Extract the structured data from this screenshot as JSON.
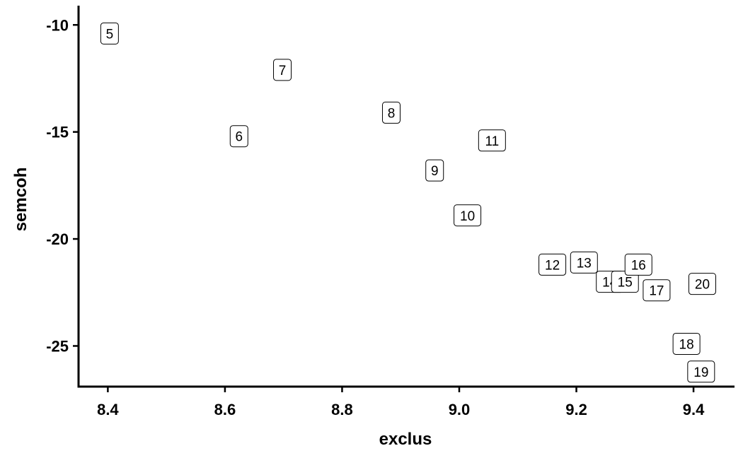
{
  "chart_data": {
    "type": "scatter",
    "title": "",
    "xlabel": "exclus",
    "ylabel": "semcoh",
    "xlim": [
      8.35,
      9.47
    ],
    "ylim": [
      -26.9,
      -9.1
    ],
    "xticks": [
      8.4,
      8.6,
      8.8,
      9.0,
      9.2,
      9.4
    ],
    "xtick_labels": [
      "8.4",
      "8.6",
      "8.8",
      "9.0",
      "9.2",
      "9.4"
    ],
    "yticks": [
      -10,
      -15,
      -20,
      -25
    ],
    "ytick_labels": [
      "-10",
      "-15",
      "-20",
      "-25"
    ],
    "grid": false,
    "points": [
      {
        "label": "5",
        "x": 8.403,
        "y": -10.4
      },
      {
        "label": "6",
        "x": 8.624,
        "y": -15.2
      },
      {
        "label": "7",
        "x": 8.698,
        "y": -12.1
      },
      {
        "label": "8",
        "x": 8.884,
        "y": -14.1
      },
      {
        "label": "9",
        "x": 8.958,
        "y": -16.8
      },
      {
        "label": "10",
        "x": 9.014,
        "y": -18.9
      },
      {
        "label": "11",
        "x": 9.056,
        "y": -15.4
      },
      {
        "label": "12",
        "x": 9.159,
        "y": -21.2
      },
      {
        "label": "13",
        "x": 9.213,
        "y": -21.1
      },
      {
        "label": "14",
        "x": 9.257,
        "y": -22.0
      },
      {
        "label": "15",
        "x": 9.283,
        "y": -22.0
      },
      {
        "label": "16",
        "x": 9.306,
        "y": -21.2
      },
      {
        "label": "17",
        "x": 9.337,
        "y": -22.4
      },
      {
        "label": "18",
        "x": 9.388,
        "y": -24.9
      },
      {
        "label": "19",
        "x": 9.413,
        "y": -26.2
      },
      {
        "label": "20",
        "x": 9.415,
        "y": -22.1
      }
    ]
  }
}
